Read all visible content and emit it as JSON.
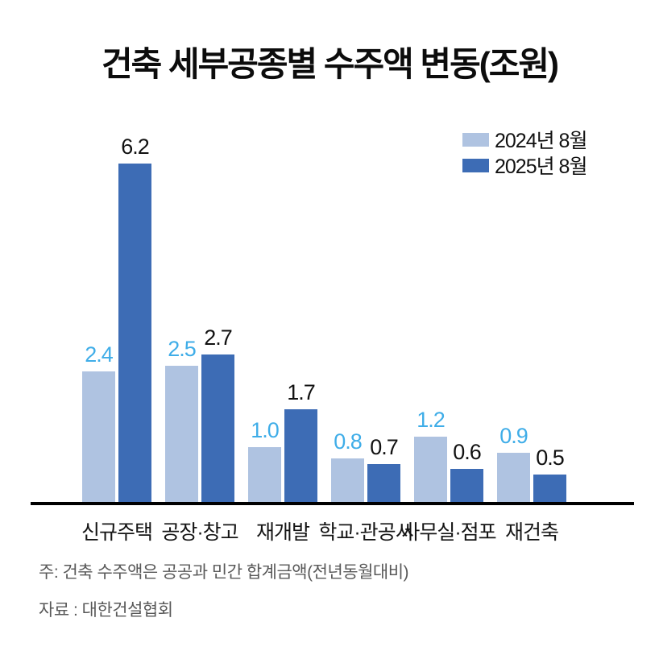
{
  "title": "건축 세부공종별 수주액 변동(조원)",
  "footnote": "주: 건축 수주액은 공공과 민간 합계금액(전년동월대비)",
  "source": "자료 : 대한건설협회",
  "colors": {
    "series_2024": "#AFC3E1",
    "series_2025": "#3D6CB5",
    "value_label_2024": "#3FADE8",
    "value_label_2025": "#111111",
    "axis": "#000000",
    "note_gray": "#595959"
  },
  "chart_data": {
    "type": "bar",
    "title": "건축 세부공종별 수주액 변동(조원)",
    "unit": "조원",
    "categories": [
      "신규주택",
      "공장·창고",
      "재개발",
      "학교·관공서",
      "사무실·점포",
      "재건축"
    ],
    "series": [
      {
        "name": "2024년 8월",
        "color": "#AFC3E1",
        "label_color": "#3FADE8",
        "values": [
          2.4,
          2.5,
          1.0,
          0.8,
          1.2,
          0.9
        ]
      },
      {
        "name": "2025년 8월",
        "color": "#3D6CB5",
        "label_color": "#111111",
        "values": [
          6.2,
          2.7,
          1.7,
          0.7,
          0.6,
          0.5
        ]
      }
    ],
    "ylim": [
      0,
      6.6
    ],
    "grid": false,
    "legend_position": "top-right",
    "value_labels": true
  }
}
